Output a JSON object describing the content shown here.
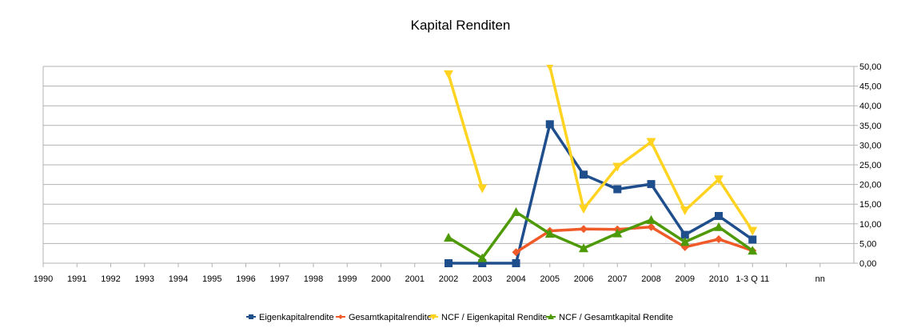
{
  "chart_data": {
    "type": "line",
    "title": "Kapital Renditen",
    "categories": [
      "1990",
      "1991",
      "1992",
      "1993",
      "1994",
      "1995",
      "1996",
      "1997",
      "1998",
      "1999",
      "2000",
      "2001",
      "2002",
      "2003",
      "2004",
      "2005",
      "2006",
      "2007",
      "2008",
      "2009",
      "2010",
      "1-3 Q 11",
      "",
      "nn"
    ],
    "ylim": [
      0,
      50
    ],
    "y_ticks": [
      "0,00",
      "5,00",
      "10,00",
      "15,00",
      "20,00",
      "25,00",
      "30,00",
      "35,00",
      "40,00",
      "45,00",
      "50,00"
    ],
    "y_axis_side": "right",
    "grid": true,
    "legend": "bottom",
    "series": [
      {
        "name": "Eigenkapitalrendite",
        "color": "#1f4e8c",
        "marker": "square",
        "values": [
          null,
          null,
          null,
          null,
          null,
          null,
          null,
          null,
          null,
          null,
          null,
          null,
          0,
          0,
          0,
          35.3,
          22.5,
          18.8,
          20.1,
          7.2,
          12.0,
          6.0,
          null,
          null
        ]
      },
      {
        "name": "Gesamtkapitalrendite",
        "color": "#f05a28",
        "marker": "diamond",
        "values": [
          null,
          null,
          null,
          null,
          null,
          null,
          null,
          null,
          null,
          null,
          null,
          null,
          null,
          null,
          2.8,
          8.2,
          8.7,
          8.6,
          9.2,
          4.1,
          6.1,
          3.2,
          null,
          null
        ]
      },
      {
        "name": "NCF / Eigenkapital Rendite",
        "color": "#ffd320",
        "marker": "triangle-down",
        "values": [
          null,
          null,
          null,
          null,
          null,
          null,
          null,
          null,
          null,
          null,
          null,
          null,
          48.0,
          19.0,
          null,
          50.0,
          13.8,
          24.5,
          30.8,
          13.4,
          21.3,
          8.2,
          null,
          null
        ]
      },
      {
        "name": "NCF / Gesamtkapital Rendite",
        "color": "#4e9a06",
        "marker": "triangle-up",
        "values": [
          null,
          null,
          null,
          null,
          null,
          null,
          null,
          null,
          null,
          null,
          null,
          null,
          6.5,
          1.3,
          13.0,
          7.5,
          3.8,
          7.6,
          11.0,
          5.4,
          9.2,
          3.2,
          null,
          null
        ]
      }
    ]
  }
}
